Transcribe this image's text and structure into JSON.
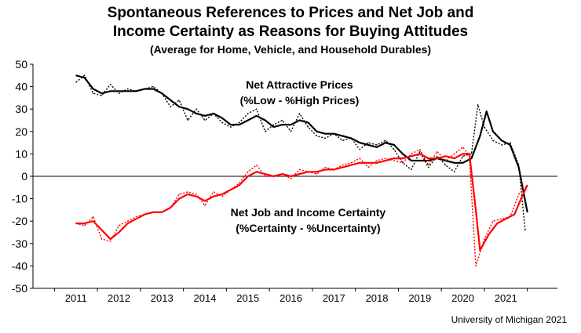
{
  "header": {
    "title_line1": "Spontaneous References to Prices and Net Job and",
    "title_line2": "Income Certainty as Reasons for Buying Attitudes",
    "subtitle": "(Average for Home, Vehicle, and Household Durables)"
  },
  "source": "University of Michigan 2021",
  "chart_data": {
    "type": "line",
    "title": "Spontaneous References to Prices and Net Job and Income Certainty as Reasons for Buying Attitudes",
    "subtitle": "(Average for Home, Vehicle, and Household Durables)",
    "xlabel": "",
    "ylabel": "",
    "xlim": [
      2010.0,
      2022.2
    ],
    "ylim": [
      -50,
      50
    ],
    "y_ticks": [
      50,
      40,
      30,
      20,
      10,
      0,
      -10,
      -20,
      -30,
      -40,
      -50
    ],
    "x_ticks": [
      "2011",
      "2012",
      "2013",
      "2014",
      "2015",
      "2016",
      "2017",
      "2018",
      "2019",
      "2020",
      "2021"
    ],
    "grid": false,
    "annotations": [
      {
        "text": "Net Attractive Prices",
        "series": "prices"
      },
      {
        "text": "(%Low - %High Prices)",
        "series": "prices"
      },
      {
        "text": "Net Job and Income Certainty",
        "series": "jobs"
      },
      {
        "text": "(%Certainty - %Uncertainty)",
        "series": "jobs"
      }
    ],
    "series": [
      {
        "id": "prices_raw",
        "color": "#000000",
        "style": "dotted",
        "x": [
          2011.0,
          2011.2,
          2011.4,
          2011.6,
          2011.8,
          2012.0,
          2012.2,
          2012.4,
          2012.6,
          2012.8,
          2013.0,
          2013.2,
          2013.4,
          2013.6,
          2013.8,
          2014.0,
          2014.2,
          2014.4,
          2014.6,
          2014.8,
          2015.0,
          2015.2,
          2015.4,
          2015.6,
          2015.8,
          2016.0,
          2016.2,
          2016.4,
          2016.6,
          2016.8,
          2017.0,
          2017.2,
          2017.4,
          2017.6,
          2017.8,
          2018.0,
          2018.2,
          2018.4,
          2018.6,
          2018.8,
          2019.0,
          2019.2,
          2019.4,
          2019.6,
          2019.8,
          2020.0,
          2020.2,
          2020.35,
          2020.5,
          2020.7,
          2020.9,
          2021.1,
          2021.3,
          2021.45
        ],
        "values": [
          42,
          45,
          37,
          36,
          41,
          37,
          39,
          38,
          39,
          40,
          37,
          31,
          34,
          25,
          30,
          25,
          28,
          24,
          22,
          24,
          28,
          30,
          20,
          23,
          25,
          20,
          28,
          22,
          18,
          17,
          19,
          16,
          17,
          12,
          15,
          14,
          16,
          12,
          6,
          3,
          11,
          4,
          9,
          5,
          2,
          9,
          10,
          32,
          22,
          16,
          14,
          15,
          5,
          -24
        ]
      },
      {
        "id": "prices_avg",
        "color": "#000000",
        "style": "solid",
        "x": [
          2011.0,
          2011.2,
          2011.4,
          2011.6,
          2011.8,
          2012.0,
          2012.2,
          2012.4,
          2012.6,
          2012.8,
          2013.0,
          2013.2,
          2013.4,
          2013.6,
          2013.8,
          2014.0,
          2014.2,
          2014.4,
          2014.6,
          2014.8,
          2015.0,
          2015.2,
          2015.4,
          2015.6,
          2015.8,
          2016.0,
          2016.2,
          2016.4,
          2016.6,
          2016.8,
          2017.0,
          2017.2,
          2017.4,
          2017.6,
          2017.8,
          2018.0,
          2018.2,
          2018.4,
          2018.6,
          2018.8,
          2019.0,
          2019.2,
          2019.4,
          2019.6,
          2019.8,
          2020.0,
          2020.2,
          2020.4,
          2020.55,
          2020.7,
          2020.9,
          2021.1,
          2021.3,
          2021.5
        ],
        "values": [
          45,
          44,
          39,
          37,
          38,
          38,
          38,
          38,
          39,
          39,
          37,
          34,
          31,
          30,
          28,
          27,
          28,
          26,
          23,
          23,
          25,
          27,
          25,
          22,
          23,
          23,
          25,
          24,
          20,
          19,
          19,
          18,
          17,
          15,
          14,
          13,
          15,
          14,
          10,
          7,
          7,
          7,
          8,
          7,
          6,
          6,
          8,
          18,
          29,
          20,
          16,
          14,
          4,
          -16
        ]
      },
      {
        "id": "jobs_raw",
        "color": "#ff0000",
        "style": "dotted",
        "x": [
          2011.0,
          2011.2,
          2011.4,
          2011.6,
          2011.8,
          2012.0,
          2012.2,
          2012.4,
          2012.6,
          2012.8,
          2013.0,
          2013.2,
          2013.4,
          2013.6,
          2013.8,
          2014.0,
          2014.2,
          2014.4,
          2014.6,
          2014.8,
          2015.0,
          2015.2,
          2015.4,
          2015.6,
          2015.8,
          2016.0,
          2016.2,
          2016.4,
          2016.6,
          2016.8,
          2017.0,
          2017.2,
          2017.4,
          2017.6,
          2017.8,
          2018.0,
          2018.2,
          2018.4,
          2018.6,
          2018.8,
          2019.0,
          2019.2,
          2019.4,
          2019.6,
          2019.8,
          2020.0,
          2020.15,
          2020.3,
          2020.5,
          2020.7,
          2020.9,
          2021.1,
          2021.3,
          2021.5
        ],
        "values": [
          -21,
          -22,
          -18,
          -28,
          -29,
          -22,
          -20,
          -18,
          -17,
          -16,
          -16,
          -14,
          -8,
          -7,
          -8,
          -13,
          -7,
          -9,
          -6,
          -3,
          2,
          5,
          0,
          0,
          1,
          -1,
          3,
          2,
          1,
          4,
          3,
          5,
          6,
          8,
          4,
          7,
          8,
          7,
          6,
          10,
          12,
          5,
          11,
          7,
          10,
          13,
          9,
          -40,
          -28,
          -20,
          -19,
          -18,
          -8,
          -4
        ]
      },
      {
        "id": "jobs_avg",
        "color": "#ff0000",
        "style": "solid",
        "x": [
          2011.0,
          2011.2,
          2011.4,
          2011.6,
          2011.8,
          2012.0,
          2012.2,
          2012.4,
          2012.6,
          2012.8,
          2013.0,
          2013.2,
          2013.4,
          2013.6,
          2013.8,
          2014.0,
          2014.2,
          2014.4,
          2014.6,
          2014.8,
          2015.0,
          2015.2,
          2015.4,
          2015.6,
          2015.8,
          2016.0,
          2016.2,
          2016.4,
          2016.6,
          2016.8,
          2017.0,
          2017.2,
          2017.4,
          2017.6,
          2017.8,
          2018.0,
          2018.2,
          2018.4,
          2018.6,
          2018.8,
          2019.0,
          2019.2,
          2019.4,
          2019.6,
          2019.8,
          2020.0,
          2020.15,
          2020.3,
          2020.4,
          2020.6,
          2020.8,
          2021.0,
          2021.2,
          2021.4,
          2021.5
        ],
        "values": [
          -21,
          -21,
          -20,
          -24,
          -28,
          -25,
          -21,
          -19,
          -17,
          -16,
          -16,
          -14,
          -10,
          -8,
          -9,
          -11,
          -9,
          -8,
          -6,
          -4,
          0,
          2,
          1,
          0,
          1,
          0,
          1,
          2,
          2,
          3,
          3,
          4,
          5,
          6,
          6,
          6,
          7,
          8,
          8,
          9,
          10,
          8,
          8,
          9,
          8,
          10,
          10,
          -15,
          -33,
          -26,
          -21,
          -19,
          -17,
          -8,
          -4
        ]
      }
    ]
  }
}
